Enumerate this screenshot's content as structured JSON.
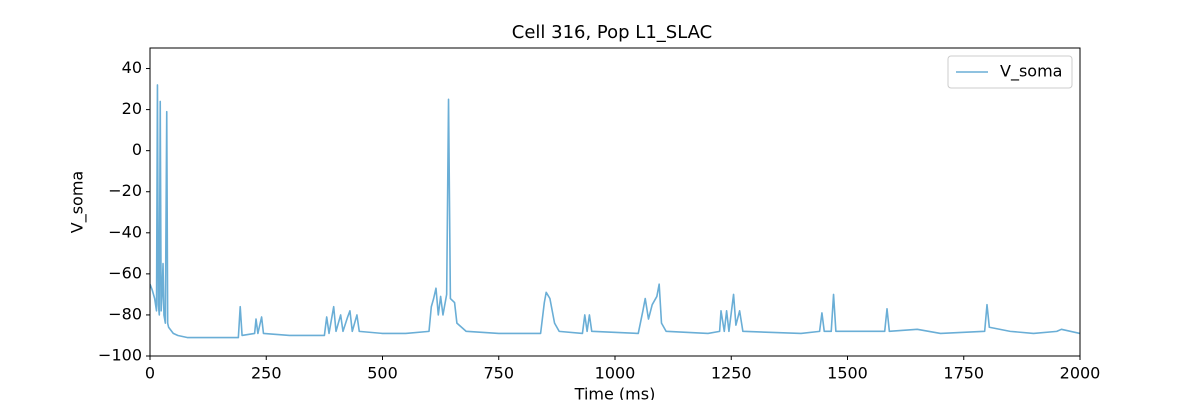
{
  "chart_data": {
    "type": "line",
    "title": "Cell 316, Pop L1_SLAC",
    "x_label": "Time (ms)",
    "y_label": "V_soma",
    "legend": "upper right",
    "xlim": [
      0,
      2000
    ],
    "ylim": [
      -100,
      50
    ],
    "xticks": [
      0,
      250,
      500,
      750,
      1000,
      1250,
      1500,
      1750,
      2000
    ],
    "yticks": [
      {
        "value": -100,
        "label": "−100"
      },
      {
        "value": -80,
        "label": "−80"
      },
      {
        "value": -60,
        "label": "−60"
      },
      {
        "value": -40,
        "label": "−40"
      },
      {
        "value": -20,
        "label": "−20"
      },
      0,
      20,
      40
    ],
    "x": [
      0,
      5,
      10,
      14,
      16,
      18,
      20,
      22,
      24,
      26,
      28,
      30,
      33,
      36,
      38,
      40,
      50,
      60,
      80,
      100,
      150,
      190,
      194,
      198,
      225,
      228,
      232,
      240,
      244,
      300,
      375,
      380,
      385,
      395,
      400,
      410,
      415,
      425,
      430,
      435,
      445,
      450,
      500,
      550,
      600,
      605,
      610,
      615,
      620,
      625,
      630,
      638,
      642,
      646,
      655,
      660,
      680,
      750,
      840,
      848,
      852,
      860,
      870,
      880,
      930,
      935,
      940,
      945,
      950,
      1050,
      1060,
      1065,
      1072,
      1080,
      1090,
      1095,
      1100,
      1110,
      1200,
      1225,
      1228,
      1235,
      1240,
      1245,
      1255,
      1260,
      1268,
      1275,
      1400,
      1440,
      1445,
      1450,
      1465,
      1470,
      1475,
      1580,
      1585,
      1590,
      1650,
      1700,
      1795,
      1800,
      1805,
      1850,
      1900,
      1950,
      1960,
      2000
    ],
    "series": [
      {
        "name": "V_soma",
        "color": "#6aaed6",
        "values": [
          -65,
          -68,
          -72,
          -78,
          32,
          -75,
          -80,
          24,
          -78,
          -70,
          -55,
          -80,
          -84,
          19,
          -84,
          -86,
          -89,
          -90,
          -91,
          -91,
          -91,
          -91,
          -76,
          -90,
          -89,
          -82,
          -89,
          -81,
          -89,
          -90,
          -90,
          -81,
          -89,
          -76,
          -88,
          -80,
          -88,
          -81,
          -78,
          -88,
          -80,
          -88,
          -89,
          -89,
          -88,
          -76,
          -72,
          -67,
          -80,
          -71,
          -80,
          -70,
          25,
          -72,
          -74,
          -84,
          -88,
          -89,
          -89,
          -74,
          -69,
          -72,
          -84,
          -88,
          -89,
          -80,
          -88,
          -80,
          -88,
          -89,
          -78,
          -72,
          -82,
          -75,
          -71,
          -65,
          -84,
          -88,
          -89,
          -88,
          -78,
          -88,
          -78,
          -88,
          -70,
          -85,
          -78,
          -88,
          -89,
          -88,
          -79,
          -88,
          -88,
          -70,
          -88,
          -88,
          -77,
          -88,
          -87,
          -89,
          -88,
          -75,
          -86,
          -88,
          -89,
          -88,
          -87,
          -89
        ]
      }
    ]
  }
}
